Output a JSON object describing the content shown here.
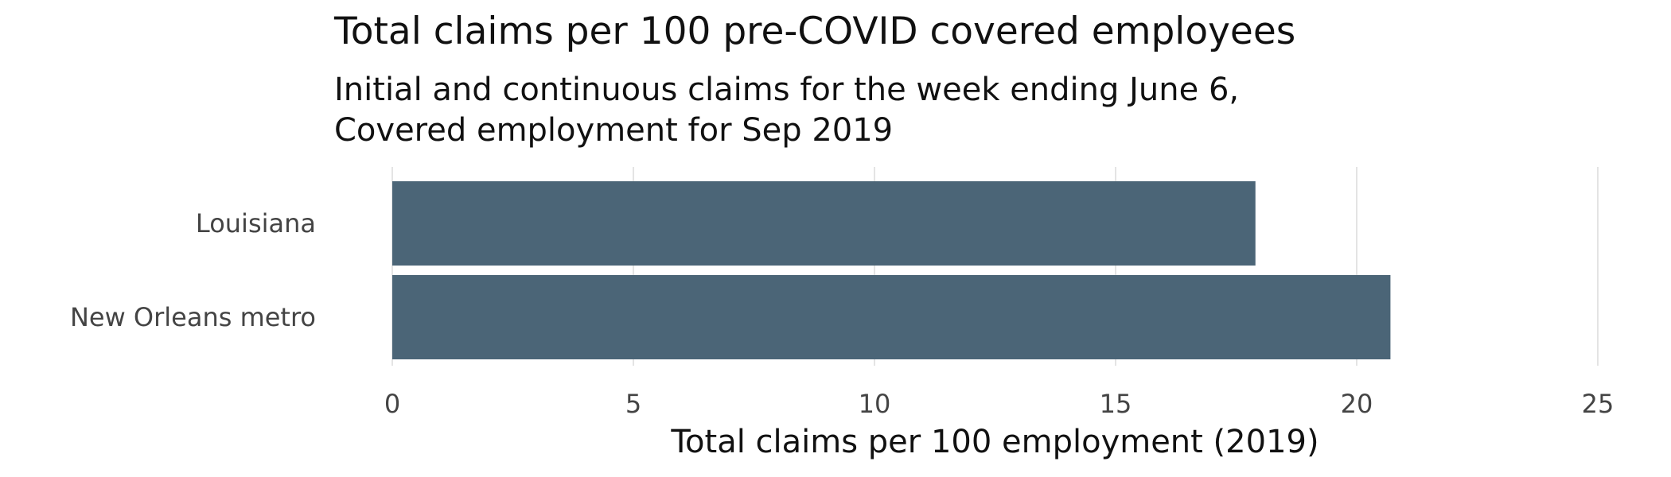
{
  "chart_data": {
    "type": "bar",
    "orientation": "horizontal",
    "title": "Total claims per 100 pre-COVID covered employees",
    "subtitle_lines": [
      "Initial and continuous claims for the week ending June 6,",
      "Covered employment for Sep 2019"
    ],
    "categories": [
      "Louisiana",
      "New Orleans metro"
    ],
    "values": [
      17.9,
      20.7
    ],
    "xlabel": "Total claims per 100 employment (2019)",
    "ylabel": "",
    "xlim": [
      0,
      25
    ],
    "xticks": [
      0,
      5,
      10,
      15,
      20,
      25
    ],
    "grid": "vertical",
    "legend": "none",
    "bar_color": "#4b6577",
    "grid_color": "#e4e4e4",
    "text_color": "#444444",
    "title_color": "#111111"
  }
}
